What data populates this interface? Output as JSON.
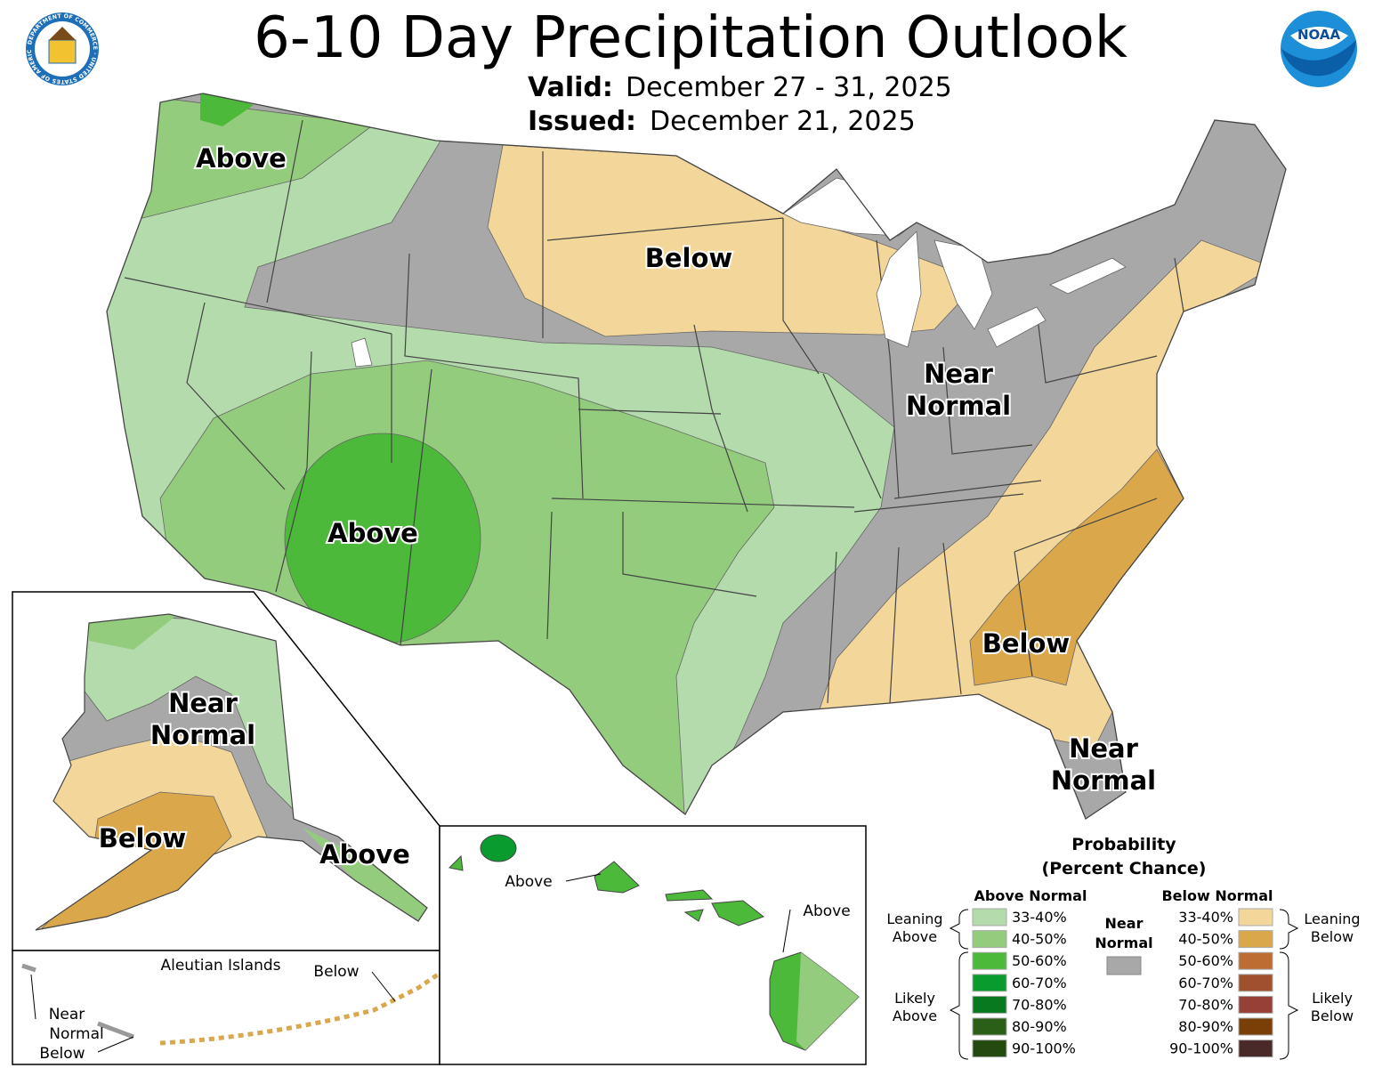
{
  "header": {
    "title": "6-10 Day Precipitation Outlook",
    "valid_label": "Valid:",
    "valid_value": "December 27 - 31, 2025",
    "issued_label": "Issued:",
    "issued_value": "December 21, 2025",
    "left_logo": "department-of-commerce-seal",
    "left_logo_text": "DEPARTMENT OF COMMERCE · UNITED STATES OF AMERICA",
    "right_logo": "noaa-logo",
    "right_logo_text": "NOAA"
  },
  "map": {
    "conus_labels": [
      "Above",
      "Below",
      "Above",
      "Near",
      "Normal",
      "Below",
      "Near",
      "Normal"
    ],
    "alaska_labels": [
      "Near",
      "Normal",
      "Below",
      "Above"
    ],
    "aleutian": {
      "title": "Aleutian Islands",
      "labels": [
        "Below",
        "Near",
        "Normal",
        "Below"
      ]
    },
    "hawaii_labels": [
      "Above",
      "Above"
    ]
  },
  "colors": {
    "near_normal": "#a8a8a8",
    "above": [
      "#b3dbab",
      "#93cc7c",
      "#4cb93a",
      "#0a9b2e",
      "#077a1f",
      "#2b5e16",
      "#254a10"
    ],
    "below": [
      "#f3d699",
      "#dba74b",
      "#bd6d32",
      "#a1502e",
      "#964038",
      "#7a3f07",
      "#4a2a28"
    ]
  },
  "legend": {
    "title1": "Probability",
    "title2": "(Percent Chance)",
    "above_header": "Above Normal",
    "below_header": "Below Normal",
    "near_line1": "Near",
    "near_line2": "Normal",
    "leaning_above": [
      "Leaning",
      "Above"
    ],
    "likely_above": [
      "Likely",
      "Above"
    ],
    "leaning_below": [
      "Leaning",
      "Below"
    ],
    "likely_below": [
      "Likely",
      "Below"
    ],
    "ranges": [
      "33-40%",
      "40-50%",
      "50-60%",
      "60-70%",
      "70-80%",
      "80-90%",
      "90-100%"
    ]
  }
}
